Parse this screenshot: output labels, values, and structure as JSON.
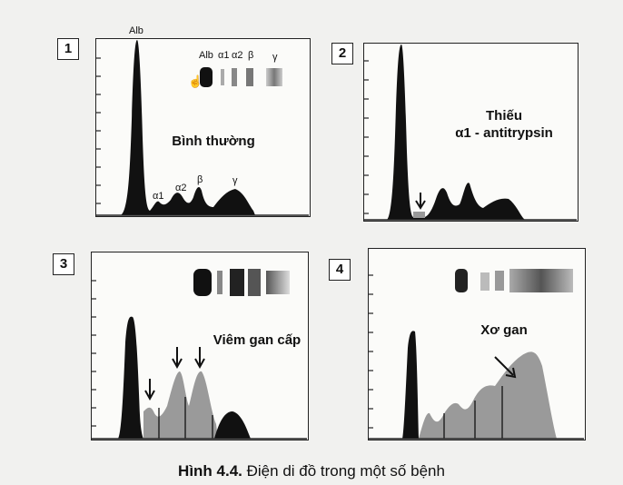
{
  "panels": [
    {
      "number": "1",
      "title": "Bình thường",
      "peak_labels": [
        "Alb",
        "α1",
        "α2",
        "β",
        "γ"
      ],
      "band_labels": [
        "Alb",
        "α1",
        "α2",
        "β",
        "γ"
      ]
    },
    {
      "number": "2",
      "title_line1": "Thiếu",
      "title_line2": "α1 - antitrypsin"
    },
    {
      "number": "3",
      "title": "Viêm gan cấp"
    },
    {
      "number": "4",
      "title": "Xơ gan"
    }
  ],
  "caption": {
    "label": "Hình 4.4.",
    "text": " Điện di đồ trong một số bệnh"
  },
  "colors": {
    "peak": "#111111",
    "highlight": "#9a9a9a",
    "frame": "#222222",
    "background": "#f1f1ef"
  }
}
